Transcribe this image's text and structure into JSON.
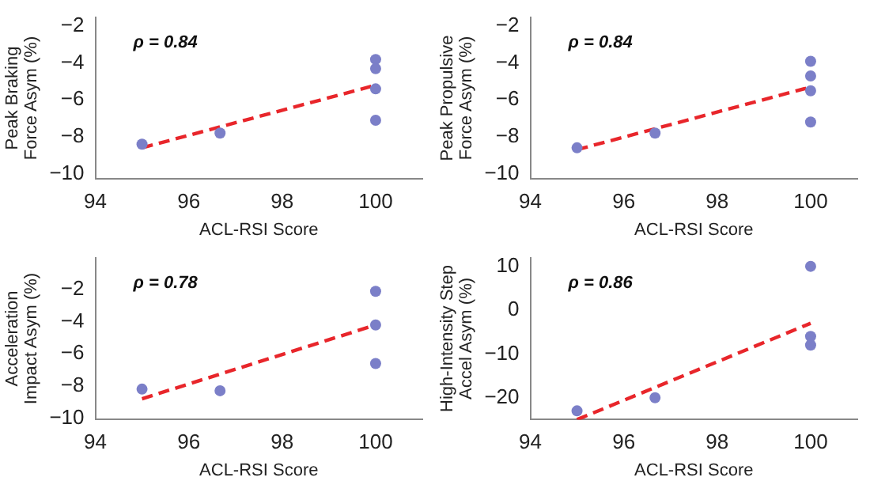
{
  "chart_data": [
    {
      "type": "scatter",
      "ylabel": "Peak Braking\nForce Asym (%)",
      "xlabel": "ACL-RSI Score",
      "annotations": [
        "ρ = 0.84"
      ],
      "xlim": [
        94,
        101
      ],
      "xticks": [
        94,
        96,
        98,
        100
      ],
      "ylim": [
        -10.3,
        -1.5
      ],
      "yticks": [
        -10,
        -8,
        -6,
        -4,
        -2
      ],
      "grid": false,
      "legend": false,
      "marker": "circle",
      "series": [
        {
          "color": "#7b7fc8",
          "x": [
            95,
            96.67,
            100,
            100,
            100,
            100
          ],
          "values": [
            -8.4,
            -7.8,
            -3.8,
            -4.3,
            -5.4,
            -7.1
          ]
        },
        {
          "type": "line",
          "color": "#e8262b",
          "line_style": "dashed",
          "marker": "none",
          "x": [
            95,
            100
          ],
          "values": [
            -8.6,
            -5.2
          ]
        }
      ]
    },
    {
      "type": "scatter",
      "ylabel": "Peak Propulsive\nForce Asym (%)",
      "xlabel": "ACL-RSI Score",
      "annotations": [
        "ρ = 0.84"
      ],
      "xlim": [
        94,
        101
      ],
      "xticks": [
        94,
        96,
        98,
        100
      ],
      "ylim": [
        -10.3,
        -1.5
      ],
      "yticks": [
        -10,
        -8,
        -6,
        -4,
        -2
      ],
      "grid": false,
      "legend": false,
      "marker": "circle",
      "series": [
        {
          "color": "#7b7fc8",
          "x": [
            95,
            96.67,
            100,
            100,
            100,
            100
          ],
          "values": [
            -8.6,
            -7.8,
            -3.9,
            -4.7,
            -5.5,
            -7.2
          ]
        },
        {
          "type": "line",
          "color": "#e8262b",
          "line_style": "dashed",
          "marker": "none",
          "x": [
            95,
            100
          ],
          "values": [
            -8.7,
            -5.3
          ]
        }
      ]
    },
    {
      "type": "scatter",
      "ylabel": "Acceleration\nImpact Asym (%)",
      "xlabel": "ACL-RSI Score",
      "annotations": [
        "ρ = 0.78"
      ],
      "xlim": [
        94,
        101
      ],
      "xticks": [
        94,
        96,
        98,
        100
      ],
      "ylim": [
        -10.1,
        0
      ],
      "yticks": [
        -10,
        -8,
        -6,
        -4,
        -2
      ],
      "grid": false,
      "legend": false,
      "marker": "circle",
      "series": [
        {
          "color": "#7b7fc8",
          "x": [
            95,
            96.67,
            100,
            100,
            100
          ],
          "values": [
            -8.2,
            -8.3,
            -2.1,
            -4.2,
            -6.6
          ]
        },
        {
          "type": "line",
          "color": "#e8262b",
          "line_style": "dashed",
          "marker": "none",
          "x": [
            95,
            100
          ],
          "values": [
            -8.8,
            -4.2
          ]
        }
      ]
    },
    {
      "type": "scatter",
      "ylabel": "High-Intensity Step\nAccel Asym (%)",
      "xlabel": "ACL-RSI Score",
      "annotations": [
        "ρ = 0.86"
      ],
      "xlim": [
        94,
        101
      ],
      "xticks": [
        94,
        96,
        98,
        100
      ],
      "ylim": [
        -25,
        12
      ],
      "yticks": [
        -20,
        -10,
        0,
        10
      ],
      "grid": false,
      "legend": false,
      "marker": "circle",
      "series": [
        {
          "color": "#7b7fc8",
          "x": [
            95,
            96.67,
            100,
            100,
            100
          ],
          "values": [
            -23,
            -20,
            10,
            -6,
            -8
          ]
        },
        {
          "type": "line",
          "color": "#e8262b",
          "line_style": "dashed",
          "marker": "none",
          "x": [
            95,
            100
          ],
          "values": [
            -25,
            -3
          ]
        }
      ]
    }
  ]
}
